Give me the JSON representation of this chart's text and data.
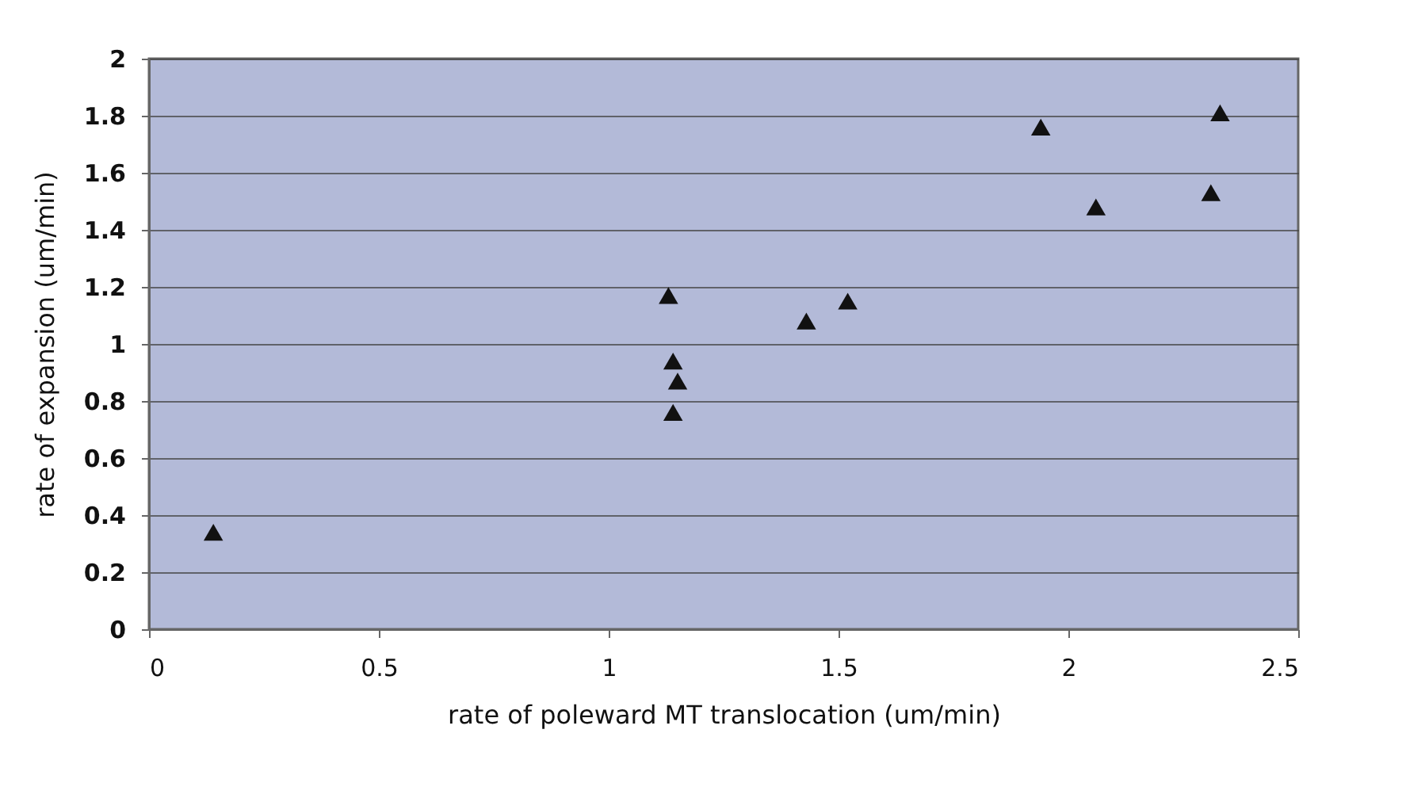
{
  "chart_data": {
    "type": "scatter",
    "xlabel": "rate of poleward MT translocation (um/min)",
    "ylabel": "rate of expansion (um/min)",
    "x": [
      0.14,
      1.13,
      1.14,
      1.15,
      1.14,
      1.43,
      1.52,
      1.94,
      2.06,
      2.31,
      2.33
    ],
    "series": [
      {
        "color": "#111111",
        "values": [
          0.34,
          1.17,
          0.94,
          0.87,
          0.76,
          1.08,
          1.15,
          1.76,
          1.48,
          1.53,
          1.81
        ]
      }
    ],
    "marker": "triangle",
    "xlim": [
      0,
      2.5
    ],
    "xticks": [
      0,
      0.5,
      1,
      1.5,
      2,
      2.5
    ],
    "ylim": [
      0,
      2
    ],
    "yticks": [
      0,
      0.2,
      0.4,
      0.6,
      0.8,
      1,
      1.2,
      1.4,
      1.6,
      1.8,
      2
    ],
    "grid": "y",
    "legend": false
  }
}
